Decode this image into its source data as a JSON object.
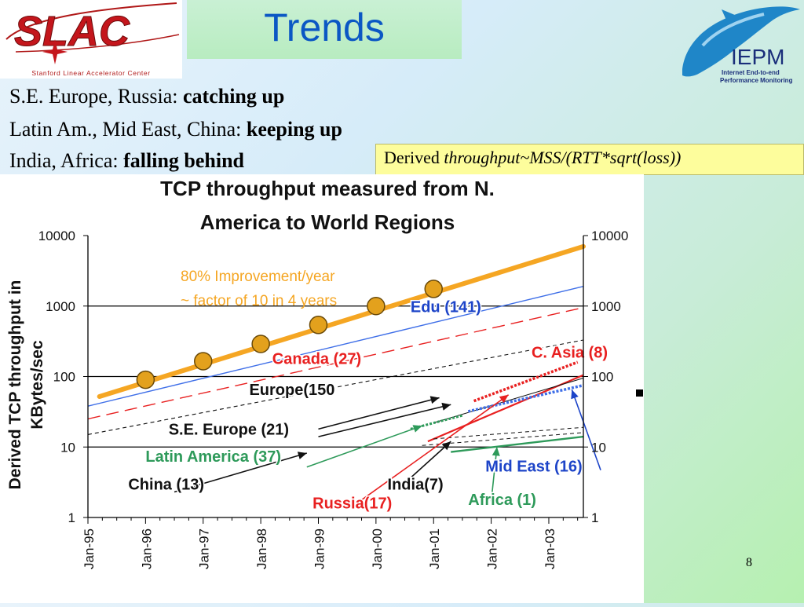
{
  "slide": {
    "logo_text": "SLAC",
    "logo_subtitle": "Stanford Linear Accelerator Center",
    "title": "Trends",
    "iepm_logo": "IEPM",
    "iepm_subtitle_1": "Internet End-to-end",
    "iepm_subtitle_2": "Performance Monitoring",
    "bullets": [
      {
        "prefix": "S.E. Europe, Russia: ",
        "emph": "catching up"
      },
      {
        "prefix": "Latin Am., Mid East, China: ",
        "emph": "keeping up"
      },
      {
        "prefix": "India, Africa: ",
        "emph": "falling behind"
      }
    ],
    "formula_prefix": "Derived ",
    "formula_italic": "throughput~MSS/(RTT*sqrt(loss))",
    "page_number": "8"
  },
  "chart_data": {
    "type": "line",
    "title": "TCP throughput measured from N. America to World Regions",
    "title_line1": "TCP throughput measured from N.",
    "title_line2": "America to World Regions",
    "ylabel_line1": "Derived TCP throughput in",
    "ylabel_line2": "KBytes/sec",
    "yscale": "log",
    "ylim": [
      1,
      10000
    ],
    "y_ticks": [
      "1",
      "10",
      "100",
      "1000",
      "10000"
    ],
    "x_ticks": [
      "Jan-95",
      "Jan-96",
      "Jan-97",
      "Jan-98",
      "Jan-99",
      "Jan-00",
      "Jan-01",
      "Jan-02",
      "Jan-03"
    ],
    "trend": {
      "label_line1": "80% Improvement/year",
      "label_line2": "~ factor of 10 in 4 years",
      "color": "#f5a623",
      "line": [
        [
          1995.2,
          52
        ],
        [
          2003.6,
          7000
        ]
      ],
      "points": [
        [
          1996.0,
          90
        ],
        [
          1997.0,
          165
        ],
        [
          1998.0,
          290
        ],
        [
          1999.0,
          540
        ],
        [
          2000.0,
          1000
        ],
        [
          2001.0,
          1750
        ]
      ]
    },
    "series": [
      {
        "name": "Edu (141)",
        "color": "#3f6fe8",
        "dash": "solid",
        "width": 1.4,
        "points": [
          [
            1995.0,
            38
          ],
          [
            2003.6,
            1900
          ]
        ]
      },
      {
        "name": "Canada (27)",
        "color": "#e82020",
        "dash": "long",
        "width": 1.4,
        "points": [
          [
            1995.0,
            25
          ],
          [
            2003.6,
            950
          ]
        ]
      },
      {
        "name": "Europe(150",
        "color": "#111111",
        "dash": "dash",
        "width": 1.1,
        "points": [
          [
            1995.0,
            15
          ],
          [
            2003.6,
            330
          ]
        ]
      },
      {
        "name": "C. Asia (8)",
        "color": "#e82020",
        "dash": "dot",
        "width": 3.5,
        "points": [
          [
            2001.7,
            45
          ],
          [
            2003.5,
            160
          ]
        ]
      },
      {
        "name": "Russia(17)",
        "color": "#e82020",
        "dash": "solid",
        "width": 2.2,
        "points": [
          [
            2000.9,
            12
          ],
          [
            2003.6,
            105
          ]
        ]
      },
      {
        "name": "S.E. Europe (21)",
        "color": "#111111",
        "dash": "solid",
        "width": 1,
        "points": [
          [
            2001.0,
            22
          ],
          [
            2003.6,
            95
          ]
        ]
      },
      {
        "name": "Mid East (16)",
        "color": "#3f6fe8",
        "dash": "dot",
        "width": 3.5,
        "points": [
          [
            2001.6,
            32
          ],
          [
            2003.6,
            75
          ]
        ]
      },
      {
        "name": "Latin America (37)",
        "color": "#2e9a5a",
        "dash": "dot",
        "width": 3,
        "points": [
          [
            2000.6,
            18
          ],
          [
            2001.5,
            28
          ]
        ]
      },
      {
        "name": "China (13)",
        "color": "#111111",
        "dash": "dash",
        "width": 1,
        "points": [
          [
            2001.0,
            13
          ],
          [
            2003.6,
            19
          ]
        ]
      },
      {
        "name": "India(7)",
        "color": "#111111",
        "dash": "dash",
        "width": 1,
        "points": [
          [
            2000.8,
            10.5
          ],
          [
            2003.6,
            16
          ]
        ]
      },
      {
        "name": "Africa (1)",
        "color": "#2e9a5a",
        "dash": "solid",
        "width": 2.4,
        "points": [
          [
            2001.3,
            8.5
          ],
          [
            2003.6,
            14
          ]
        ]
      }
    ],
    "labels": [
      {
        "text": "Edu (141)",
        "color": "#1d44c8",
        "x": 2000.6,
        "y": 820
      },
      {
        "text": "Canada (27)",
        "color": "#e82020",
        "x": 1998.2,
        "y": 150
      },
      {
        "text": "C. Asia (8)",
        "color": "#e82020",
        "x": 2002.7,
        "y": 185
      },
      {
        "text": "Europe(150",
        "color": "#111111",
        "x": 1997.8,
        "y": 55
      },
      {
        "text": "S.E.  Europe (21)",
        "color": "#111111",
        "x": 1996.4,
        "y": 15
      },
      {
        "text": "Latin America (37)",
        "color": "#2e9a5a",
        "x": 1996.0,
        "y": 6.2
      },
      {
        "text": "China (13)",
        "color": "#111111",
        "x": 1995.7,
        "y": 2.5
      },
      {
        "text": "Russia(17)",
        "color": "#e82020",
        "x": 1998.9,
        "y": 1.35
      },
      {
        "text": "India(7)",
        "color": "#111111",
        "x": 2000.2,
        "y": 2.5
      },
      {
        "text": "Africa (1)",
        "color": "#2e9a5a",
        "x": 2001.6,
        "y": 1.5
      },
      {
        "text": "Mid East (16)",
        "color": "#1d44c8",
        "x": 2001.9,
        "y": 4.5
      }
    ],
    "arrows": [
      {
        "label": "Europe(150",
        "color": "#111111",
        "from": [
          1999.0,
          18
        ],
        "to": [
          2001.1,
          50
        ]
      },
      {
        "label": "S.E.  Europe (21)",
        "color": "#111111",
        "from": [
          1999.0,
          14
        ],
        "to": [
          2001.3,
          40
        ]
      },
      {
        "label": "Latin America (37)",
        "color": "#2e9a5a",
        "from": [
          1998.8,
          5.2
        ],
        "to": [
          2000.8,
          20
        ]
      },
      {
        "label": "China (13)",
        "color": "#111111",
        "from": [
          1996.5,
          2.3
        ],
        "to": [
          1998.8,
          8.2
        ]
      },
      {
        "label": "Russia(17)",
        "color": "#e82020",
        "from": [
          1999.6,
          1.45
        ],
        "to": [
          2002.3,
          55
        ]
      },
      {
        "label": "India(7)",
        "color": "#111111",
        "from": [
          2000.4,
          2.6
        ],
        "to": [
          2001.3,
          12
        ]
      },
      {
        "label": "Africa (1)",
        "color": "#2e9a5a",
        "from": [
          2002.0,
          1.7
        ],
        "to": [
          2002.1,
          10
        ]
      },
      {
        "label": "Mid East (16)",
        "color": "#1d44c8",
        "from": [
          2003.9,
          4.7
        ],
        "to": [
          2003.4,
          65
        ]
      }
    ]
  }
}
